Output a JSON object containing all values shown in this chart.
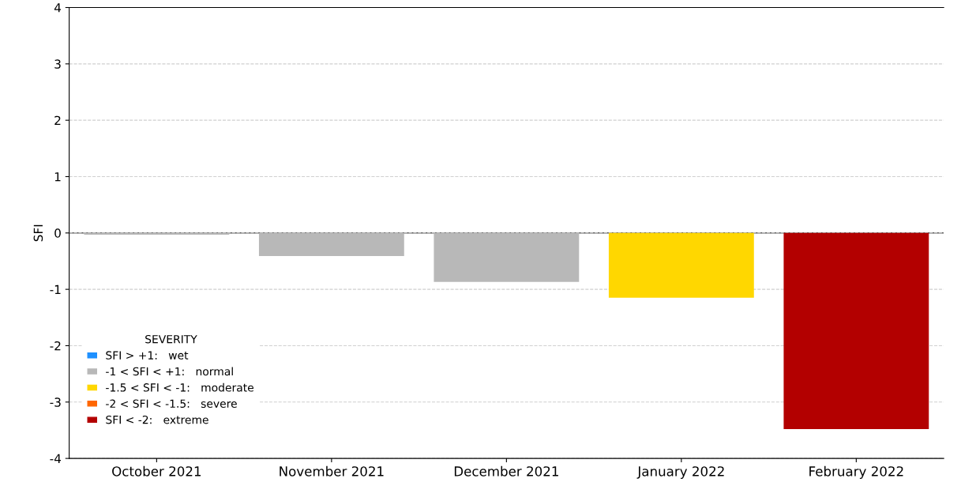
{
  "chart_data": {
    "type": "bar",
    "ylabel": "SFI",
    "categories": [
      "October 2021",
      "November 2021",
      "December 2021",
      "January 2022",
      "February 2022"
    ],
    "series": [
      {
        "name": "SFI > +1:   wet",
        "color": "#1e90ff",
        "values": [
          null,
          null,
          null,
          null,
          null
        ]
      },
      {
        "name": "-1 < SFI < +1:   normal",
        "color": "#b8b8b8",
        "values": [
          -0.03,
          -0.41,
          -0.87,
          null,
          null
        ]
      },
      {
        "name": "-1.5 < SFI < -1:   moderate",
        "color": "#ffd700",
        "values": [
          null,
          null,
          null,
          -1.15,
          null
        ]
      },
      {
        "name": "-2 < SFI < -1.5:   severe",
        "color": "#ff6600",
        "values": [
          null,
          null,
          null,
          null,
          null
        ]
      },
      {
        "name": "SFI < -2:   extreme",
        "color": "#b30000",
        "values": [
          null,
          null,
          null,
          null,
          -3.48
        ]
      }
    ],
    "legend_title": "SEVERITY",
    "legend": "bottom left",
    "ylim": [
      -4,
      4
    ],
    "yticks": [
      -4,
      -3,
      -2,
      -1,
      0,
      1,
      2,
      3,
      4
    ],
    "grid": "y",
    "ref_lines": [
      {
        "axis": "y",
        "value": 0,
        "color": "#555555"
      }
    ]
  }
}
